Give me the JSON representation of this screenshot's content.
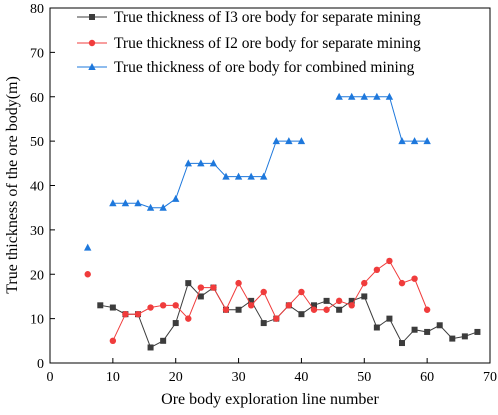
{
  "chart_data": {
    "type": "line",
    "xlabel": "Ore body exploration line number",
    "ylabel": "True thickness of the ore body(m)",
    "xlim": [
      0,
      70
    ],
    "ylim": [
      0,
      80
    ],
    "xticks": [
      0,
      10,
      20,
      30,
      40,
      50,
      60,
      70
    ],
    "yticks": [
      0,
      10,
      20,
      30,
      40,
      50,
      60,
      70,
      80
    ],
    "grid": false,
    "legend_position": "top-right",
    "series": [
      {
        "name": "True thickness of I3 ore body for separate mining",
        "color": "#3c3c3c",
        "marker": "square",
        "segments": [
          [
            [
              8,
              13
            ],
            [
              10,
              12.5
            ],
            [
              12,
              11
            ],
            [
              14,
              11
            ],
            [
              16,
              3.5
            ],
            [
              18,
              5
            ],
            [
              20,
              9
            ],
            [
              22,
              18
            ],
            [
              24,
              15
            ],
            [
              26,
              17
            ],
            [
              28,
              12
            ],
            [
              30,
              12
            ],
            [
              32,
              14
            ],
            [
              34,
              9
            ],
            [
              36,
              10
            ],
            [
              38,
              13
            ],
            [
              40,
              11
            ],
            [
              42,
              13
            ],
            [
              44,
              14
            ],
            [
              46,
              12
            ],
            [
              48,
              14
            ],
            [
              50,
              15
            ],
            [
              52,
              8
            ],
            [
              54,
              10
            ],
            [
              56,
              4.5
            ],
            [
              58,
              7.5
            ],
            [
              60,
              7
            ],
            [
              62,
              8.5
            ],
            [
              64,
              5.5
            ],
            [
              66,
              6
            ],
            [
              68,
              7
            ]
          ]
        ]
      },
      {
        "name": "True thickness of I2 ore body for separate mining",
        "color": "#f03c3c",
        "marker": "circle",
        "segments": [
          [
            [
              6,
              20
            ]
          ],
          [
            [
              10,
              5
            ],
            [
              12,
              11
            ],
            [
              14,
              11
            ],
            [
              16,
              12.5
            ],
            [
              18,
              13
            ],
            [
              20,
              13
            ],
            [
              22,
              10
            ],
            [
              24,
              17
            ],
            [
              26,
              17
            ],
            [
              28,
              12
            ],
            [
              30,
              18
            ],
            [
              32,
              13
            ],
            [
              34,
              16
            ],
            [
              36,
              10
            ],
            [
              38,
              13
            ],
            [
              40,
              16
            ],
            [
              42,
              12
            ],
            [
              44,
              12
            ],
            [
              46,
              14
            ],
            [
              48,
              13
            ],
            [
              50,
              18
            ],
            [
              52,
              21
            ],
            [
              54,
              23
            ],
            [
              56,
              18
            ],
            [
              58,
              19
            ],
            [
              60,
              12
            ]
          ]
        ]
      },
      {
        "name": "True thickness of ore body for combined mining",
        "color": "#1e78dc",
        "marker": "triangle",
        "segments": [
          [
            [
              6,
              26
            ]
          ],
          [
            [
              10,
              36
            ],
            [
              12,
              36
            ],
            [
              14,
              36
            ],
            [
              16,
              35
            ],
            [
              18,
              35
            ],
            [
              20,
              37
            ],
            [
              22,
              45
            ],
            [
              24,
              45
            ],
            [
              26,
              45
            ],
            [
              28,
              42
            ],
            [
              30,
              42
            ],
            [
              32,
              42
            ],
            [
              34,
              42
            ],
            [
              36,
              50
            ],
            [
              38,
              50
            ],
            [
              40,
              50
            ]
          ],
          [
            [
              46,
              60
            ],
            [
              48,
              60
            ],
            [
              50,
              60
            ],
            [
              52,
              60
            ],
            [
              54,
              60
            ],
            [
              56,
              50
            ],
            [
              58,
              50
            ],
            [
              60,
              50
            ]
          ]
        ]
      }
    ]
  }
}
